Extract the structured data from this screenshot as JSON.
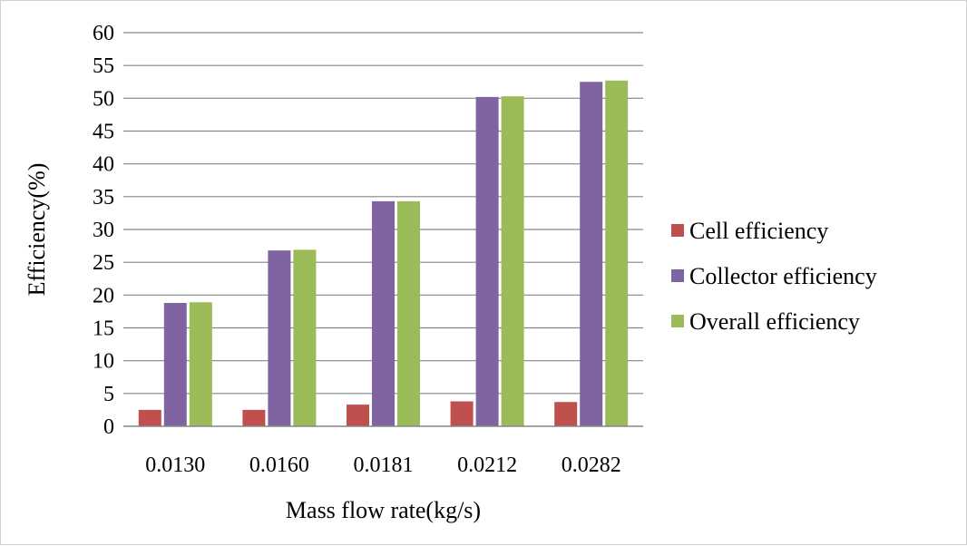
{
  "chart_data": {
    "type": "bar",
    "title": "",
    "xlabel": "Mass flow rate(kg/s)",
    "ylabel": "Efficiency(%)",
    "ylim": [
      0,
      60
    ],
    "ytick_step": 5,
    "grid": true,
    "legend_position": "right",
    "categories": [
      "0.0130",
      "0.0160",
      "0.0181",
      "0.0212",
      "0.0282"
    ],
    "series": [
      {
        "name": "Cell efficiency",
        "color": "#c0504d",
        "values": [
          2.5,
          2.5,
          3.3,
          3.8,
          3.7
        ]
      },
      {
        "name": "Collector efficiency",
        "color": "#8064a2",
        "values": [
          18.8,
          26.8,
          34.3,
          50.2,
          52.5
        ]
      },
      {
        "name": "Overall efficiency",
        "color": "#9bbb59",
        "values": [
          18.9,
          26.9,
          34.3,
          50.3,
          52.7
        ]
      }
    ]
  }
}
